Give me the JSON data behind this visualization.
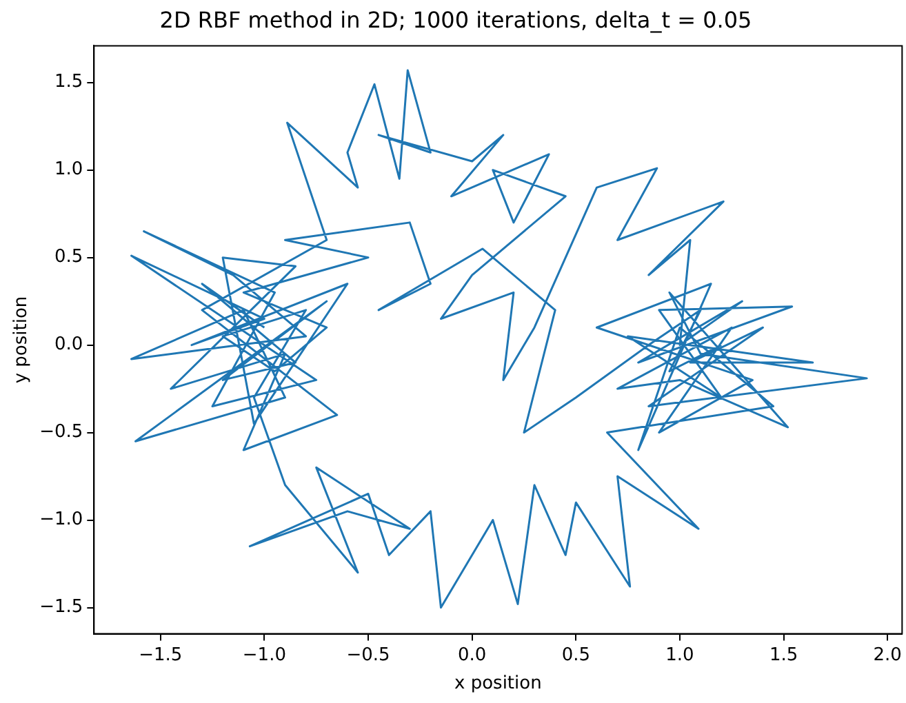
{
  "chart_data": {
    "type": "line",
    "title": "2D RBF method in 2D; 1000 iterations, delta_t = 0.05",
    "xlabel": "x position",
    "ylabel": "y position",
    "xlim": [
      -1.82,
      2.07
    ],
    "ylim": [
      -1.65,
      1.71
    ],
    "xticks": [
      {
        "value": -1.5,
        "label": "−1.5"
      },
      {
        "value": -1.0,
        "label": "−1.0"
      },
      {
        "value": -0.5,
        "label": "−0.5"
      },
      {
        "value": 0,
        "label": "0.0"
      },
      {
        "value": 0.5,
        "label": "0.5"
      },
      {
        "value": 1.0,
        "label": "1.0"
      },
      {
        "value": 1.5,
        "label": "1.5"
      },
      {
        "value": 2.0,
        "label": "2.0"
      }
    ],
    "yticks": [
      {
        "value": -1.5,
        "label": "−1.5"
      },
      {
        "value": -1.0,
        "label": "−1.0"
      },
      {
        "value": -0.5,
        "label": "−0.5"
      },
      {
        "value": 0,
        "label": "0.0"
      },
      {
        "value": 0.5,
        "label": "0.5"
      },
      {
        "value": 1.0,
        "label": "1.0"
      },
      {
        "value": 1.5,
        "label": "1.5"
      }
    ],
    "grid": false,
    "legend": false,
    "series": [
      {
        "color": "#1f77b4",
        "x": [
          -1.0,
          -1.3,
          -0.85,
          -1.2,
          -0.7,
          -1.62,
          -0.9,
          -1.1,
          -1.64,
          -0.8,
          -1.15,
          -1.58,
          -0.95,
          -1.25,
          -0.75,
          -1.64,
          -1.0,
          -1.35,
          -0.6,
          -1.05,
          -1.2,
          -0.85,
          -1.45,
          -0.9,
          -1.1,
          -0.65,
          -1.3,
          -0.7,
          -0.89,
          -0.55,
          -0.6,
          -0.47,
          -0.35,
          -0.31,
          -0.2,
          -0.45,
          0.0,
          0.15,
          -0.1,
          0.37,
          0.2,
          0.1,
          0.45,
          0.0,
          -0.15,
          0.2,
          0.15,
          0.3,
          0.6,
          0.89,
          0.7,
          1.21,
          0.85,
          1.05,
          1.0,
          1.3,
          0.8,
          1.54,
          0.9,
          1.2,
          0.75,
          1.64,
          1.05,
          1.4,
          0.85,
          1.9,
          1.1,
          0.95,
          1.52,
          1.0,
          0.7,
          1.25,
          0.9,
          1.35,
          0.6,
          1.15,
          0.8,
          1.0,
          1.45,
          0.65,
          1.09,
          0.7,
          0.76,
          0.5,
          0.45,
          0.3,
          0.22,
          0.1,
          -0.15,
          -0.2,
          -0.4,
          -0.5,
          -1.07,
          -0.6,
          -0.3,
          -0.75,
          -0.55,
          -0.9,
          -1.05,
          -0.8,
          -1.2,
          -0.95,
          -0.7,
          -1.1,
          -0.5,
          -0.9,
          -0.3,
          -0.2,
          -0.45,
          0.05,
          0.4,
          0.25,
          0.5,
          0.85,
          1.1,
          0.95,
          1.2
        ],
        "values": [
          0.1,
          0.35,
          -0.1,
          -0.2,
          0.25,
          -0.55,
          -0.3,
          0.2,
          -0.08,
          0.05,
          0.4,
          0.65,
          0.3,
          -0.35,
          -0.2,
          0.51,
          0.15,
          0.0,
          0.35,
          -0.45,
          0.5,
          0.45,
          -0.25,
          -0.05,
          -0.6,
          -0.4,
          0.2,
          0.6,
          1.27,
          0.9,
          1.1,
          1.49,
          0.95,
          1.57,
          1.1,
          1.2,
          1.05,
          1.2,
          0.85,
          1.09,
          0.7,
          1.0,
          0.85,
          0.4,
          0.15,
          0.3,
          -0.2,
          0.1,
          0.9,
          1.01,
          0.6,
          0.82,
          0.4,
          0.6,
          0.0,
          0.25,
          -0.1,
          0.22,
          0.2,
          -0.3,
          0.05,
          -0.1,
          -0.1,
          0.1,
          -0.35,
          -0.19,
          -0.05,
          0.3,
          -0.47,
          -0.2,
          -0.25,
          0.1,
          -0.5,
          -0.2,
          0.1,
          0.35,
          -0.6,
          0.1,
          -0.35,
          -0.5,
          -1.05,
          -0.75,
          -1.38,
          -0.9,
          -1.2,
          -0.8,
          -1.48,
          -1.0,
          -1.5,
          -0.95,
          -1.2,
          -0.85,
          -1.15,
          -0.95,
          -1.05,
          -0.7,
          -1.3,
          -0.8,
          -0.3,
          0.2,
          0.05,
          -0.15,
          0.1,
          0.3,
          0.5,
          0.6,
          0.7,
          0.35,
          0.2,
          0.55,
          0.2,
          -0.5,
          -0.3,
          0.0,
          0.2,
          -0.15,
          0.0
        ]
      }
    ]
  }
}
